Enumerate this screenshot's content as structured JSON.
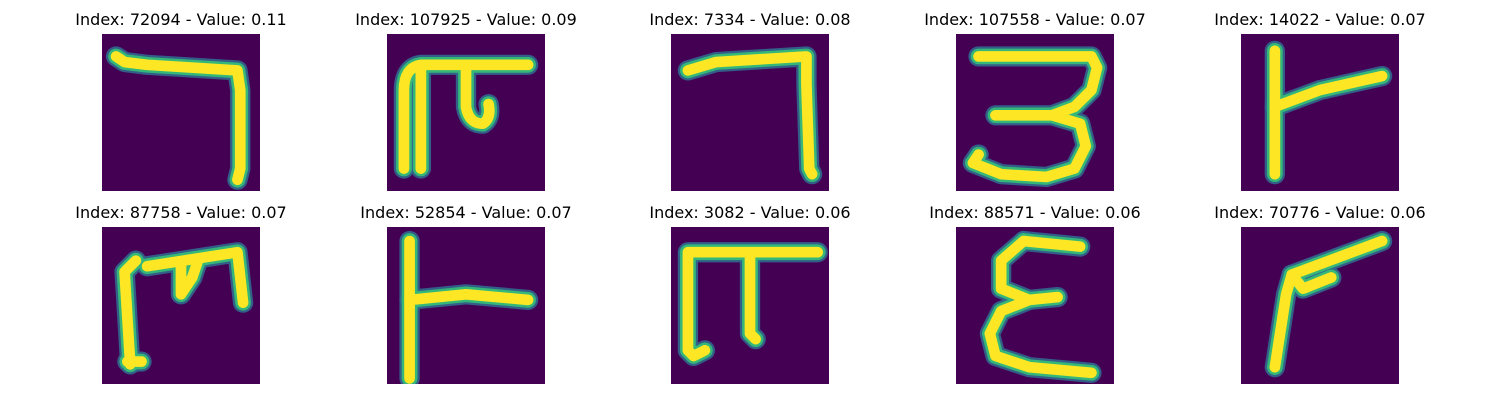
{
  "colors": {
    "background": "#440154",
    "stroke_core": "#fde725",
    "stroke_edge": "#35b779",
    "stroke_halo": "#31688e"
  },
  "panels": [
    {
      "title": "Index: 72094 - Value: 0.11",
      "glyph": "hook-seven"
    },
    {
      "title": "Index: 107925 - Value: 0.09",
      "glyph": "pi-shape"
    },
    {
      "title": "Index: 7334 - Value: 0.08",
      "glyph": "seven"
    },
    {
      "title": "Index: 107558 - Value: 0.07",
      "glyph": "three"
    },
    {
      "title": "Index: 14022 - Value: 0.07",
      "glyph": "vertical-with-branch"
    },
    {
      "title": "Index: 87758 - Value: 0.07",
      "glyph": "m-shape"
    },
    {
      "title": "Index: 52854 - Value: 0.07",
      "glyph": "vertical-with-right-arm"
    },
    {
      "title": "Index: 3082 - Value: 0.06",
      "glyph": "pi-block"
    },
    {
      "title": "Index: 88571 - Value: 0.06",
      "glyph": "epsilon"
    },
    {
      "title": "Index: 70776 - Value: 0.06",
      "glyph": "angle-loop"
    }
  ]
}
